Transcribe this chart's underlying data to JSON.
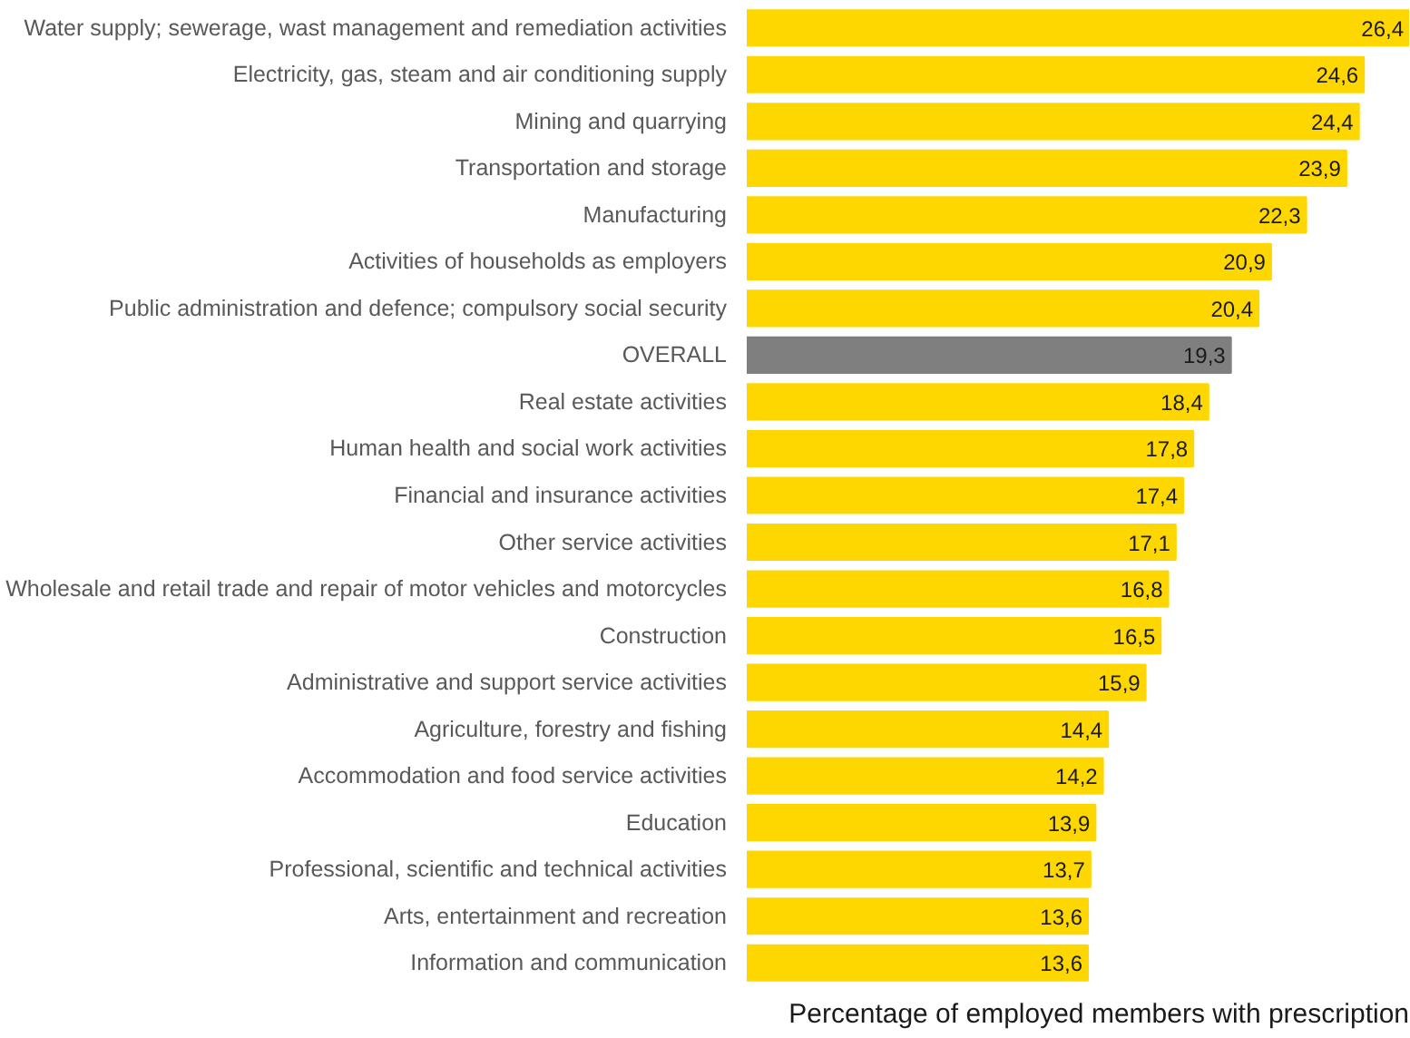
{
  "chart_data": {
    "type": "bar",
    "orientation": "horizontal",
    "xlabel": "Percentage of employed members with prescription",
    "categories": [
      "Water supply; sewerage, wast management and remediation activities",
      "Electricity, gas, steam and air conditioning supply",
      "Mining and quarrying",
      "Transportation and storage",
      "Manufacturing",
      "Activities of households as employers",
      "Public administration and defence; compulsory social security",
      "OVERALL",
      "Real estate activities",
      "Human health and social work activities",
      "Financial and insurance activities",
      "Other service activities",
      "Wholesale and retail trade and repair of motor vehicles and motorcycles",
      "Construction",
      "Administrative and support service activities",
      "Agriculture, forestry and fishing",
      "Accommodation and food service activities",
      "Education",
      "Professional, scientific and technical activities",
      "Arts, entertainment and recreation",
      "Information and communication"
    ],
    "values": [
      26.4,
      24.6,
      24.4,
      23.9,
      22.3,
      20.9,
      20.4,
      19.3,
      18.4,
      17.8,
      17.4,
      17.1,
      16.8,
      16.5,
      15.9,
      14.4,
      14.2,
      13.9,
      13.7,
      13.6,
      13.6
    ],
    "value_labels": [
      "26,4",
      "24,6",
      "24,4",
      "23,9",
      "22,3",
      "20,9",
      "20,4",
      "19,3",
      "18,4",
      "17,8",
      "17,4",
      "17,1",
      "16,8",
      "16,5",
      "15,9",
      "14,4",
      "14,2",
      "13,9",
      "13,7",
      "13,6",
      "13,6"
    ],
    "colors": [
      "#ffd700",
      "#ffd700",
      "#ffd700",
      "#ffd700",
      "#ffd700",
      "#ffd700",
      "#ffd700",
      "#7f7f7f",
      "#ffd700",
      "#ffd700",
      "#ffd700",
      "#ffd700",
      "#ffd700",
      "#ffd700",
      "#ffd700",
      "#ffd700",
      "#ffd700",
      "#ffd700",
      "#ffd700",
      "#ffd700",
      "#ffd700"
    ],
    "grid": false
  }
}
